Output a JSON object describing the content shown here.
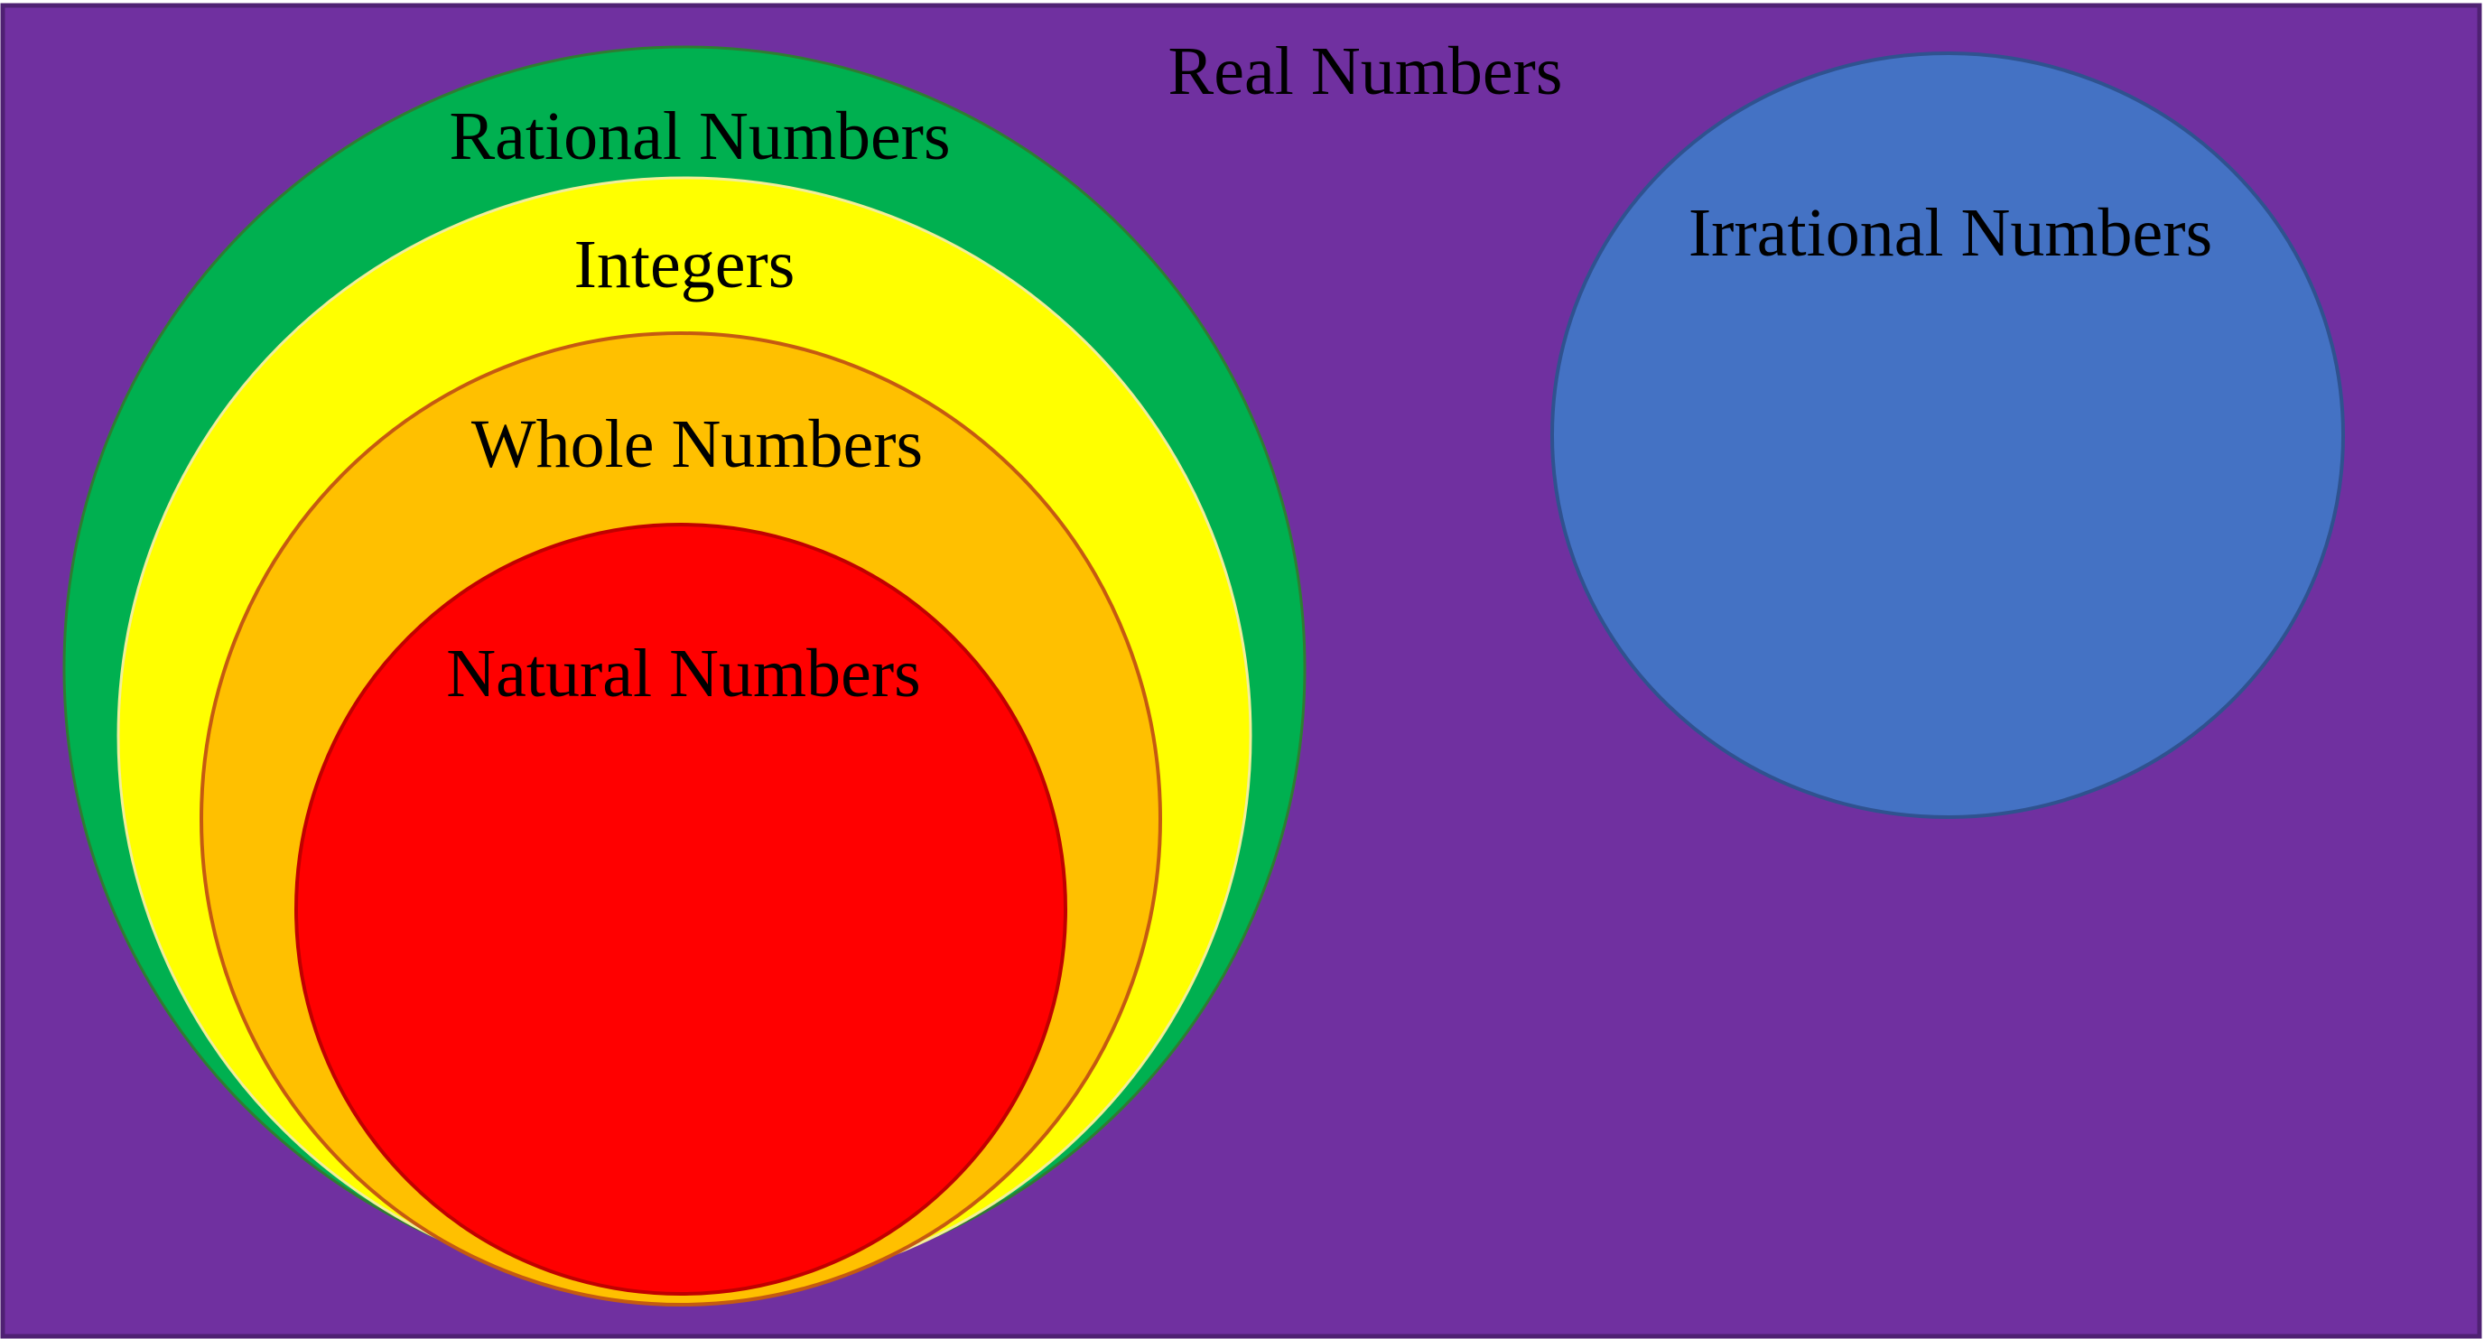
{
  "diagram": {
    "labels": {
      "real": "Real Numbers",
      "rational": "Rational Numbers",
      "integers": "Integers",
      "whole": "Whole Numbers",
      "natural": "Natural Numbers",
      "irrational": "Irrational Numbers"
    },
    "colors": {
      "real": "#7030A0",
      "rational": "#00B050",
      "integers": "#FFFF00",
      "whole": "#FFC000",
      "natural": "#FF0000",
      "irrational": "#4472C4"
    }
  }
}
